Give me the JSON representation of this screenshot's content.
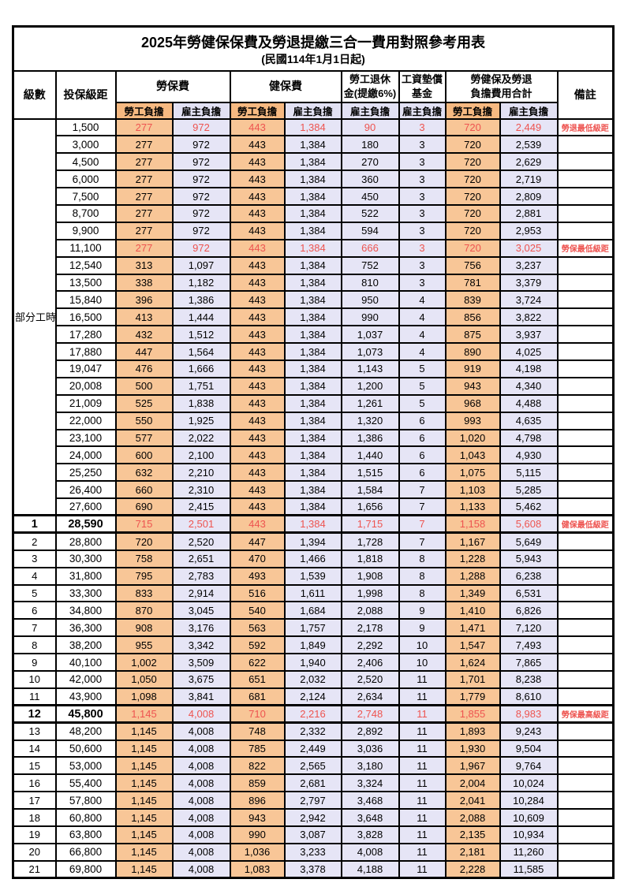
{
  "title": "2025年勞健保保費及勞退提繳三合一費用對照參考用表",
  "subtitle": "(民國114年1月1日起)",
  "header": {
    "level": "級數",
    "bracket": "投保級距",
    "labor_ins": "勞保費",
    "health_ins": "健保費",
    "pension_l1": "勞工退休",
    "pension_l2": "金(提繳6%)",
    "fund_l1": "工資墊償",
    "fund_l2": "基金",
    "total_l1": "勞健保及勞退",
    "total_l2": "負擔費用合計",
    "remark": "備註",
    "employee": "勞工負擔",
    "employer": "雇主負擔"
  },
  "group_label": "部分工時",
  "group_rowspan": 23,
  "colors": {
    "employee_bg": "#F8C697",
    "employer_bg": "#E6E5F6",
    "subheader_employee_bg": "#F6B981",
    "highlight_red": "#EE5450",
    "border": "#000000"
  },
  "rows": [
    {
      "level": "",
      "bracket": "1,500",
      "labor_emp": "277",
      "labor_er": "972",
      "health_emp": "443",
      "health_er": "1,384",
      "pension_er": "90",
      "fund_er": "3",
      "total_emp": "720",
      "total_er": "2,449",
      "remark": "勞退最低級距",
      "red": true,
      "emphasis": false
    },
    {
      "level": "",
      "bracket": "3,000",
      "labor_emp": "277",
      "labor_er": "972",
      "health_emp": "443",
      "health_er": "1,384",
      "pension_er": "180",
      "fund_er": "3",
      "total_emp": "720",
      "total_er": "2,539",
      "remark": "",
      "red": false,
      "emphasis": false
    },
    {
      "level": "",
      "bracket": "4,500",
      "labor_emp": "277",
      "labor_er": "972",
      "health_emp": "443",
      "health_er": "1,384",
      "pension_er": "270",
      "fund_er": "3",
      "total_emp": "720",
      "total_er": "2,629",
      "remark": "",
      "red": false,
      "emphasis": false
    },
    {
      "level": "",
      "bracket": "6,000",
      "labor_emp": "277",
      "labor_er": "972",
      "health_emp": "443",
      "health_er": "1,384",
      "pension_er": "360",
      "fund_er": "3",
      "total_emp": "720",
      "total_er": "2,719",
      "remark": "",
      "red": false,
      "emphasis": false
    },
    {
      "level": "",
      "bracket": "7,500",
      "labor_emp": "277",
      "labor_er": "972",
      "health_emp": "443",
      "health_er": "1,384",
      "pension_er": "450",
      "fund_er": "3",
      "total_emp": "720",
      "total_er": "2,809",
      "remark": "",
      "red": false,
      "emphasis": false
    },
    {
      "level": "",
      "bracket": "8,700",
      "labor_emp": "277",
      "labor_er": "972",
      "health_emp": "443",
      "health_er": "1,384",
      "pension_er": "522",
      "fund_er": "3",
      "total_emp": "720",
      "total_er": "2,881",
      "remark": "",
      "red": false,
      "emphasis": false
    },
    {
      "level": "",
      "bracket": "9,900",
      "labor_emp": "277",
      "labor_er": "972",
      "health_emp": "443",
      "health_er": "1,384",
      "pension_er": "594",
      "fund_er": "3",
      "total_emp": "720",
      "total_er": "2,953",
      "remark": "",
      "red": false,
      "emphasis": false
    },
    {
      "level": "",
      "bracket": "11,100",
      "labor_emp": "277",
      "labor_er": "972",
      "health_emp": "443",
      "health_er": "1,384",
      "pension_er": "666",
      "fund_er": "3",
      "total_emp": "720",
      "total_er": "3,025",
      "remark": "勞保最低級距",
      "red": true,
      "emphasis": false
    },
    {
      "level": "",
      "bracket": "12,540",
      "labor_emp": "313",
      "labor_er": "1,097",
      "health_emp": "443",
      "health_er": "1,384",
      "pension_er": "752",
      "fund_er": "3",
      "total_emp": "756",
      "total_er": "3,237",
      "remark": "",
      "red": false,
      "emphasis": false
    },
    {
      "level": "",
      "bracket": "13,500",
      "labor_emp": "338",
      "labor_er": "1,182",
      "health_emp": "443",
      "health_er": "1,384",
      "pension_er": "810",
      "fund_er": "3",
      "total_emp": "781",
      "total_er": "3,379",
      "remark": "",
      "red": false,
      "emphasis": false
    },
    {
      "level": "",
      "bracket": "15,840",
      "labor_emp": "396",
      "labor_er": "1,386",
      "health_emp": "443",
      "health_er": "1,384",
      "pension_er": "950",
      "fund_er": "4",
      "total_emp": "839",
      "total_er": "3,724",
      "remark": "",
      "red": false,
      "emphasis": false
    },
    {
      "level": "",
      "bracket": "16,500",
      "labor_emp": "413",
      "labor_er": "1,444",
      "health_emp": "443",
      "health_er": "1,384",
      "pension_er": "990",
      "fund_er": "4",
      "total_emp": "856",
      "total_er": "3,822",
      "remark": "",
      "red": false,
      "emphasis": false
    },
    {
      "level": "",
      "bracket": "17,280",
      "labor_emp": "432",
      "labor_er": "1,512",
      "health_emp": "443",
      "health_er": "1,384",
      "pension_er": "1,037",
      "fund_er": "4",
      "total_emp": "875",
      "total_er": "3,937",
      "remark": "",
      "red": false,
      "emphasis": false
    },
    {
      "level": "",
      "bracket": "17,880",
      "labor_emp": "447",
      "labor_er": "1,564",
      "health_emp": "443",
      "health_er": "1,384",
      "pension_er": "1,073",
      "fund_er": "4",
      "total_emp": "890",
      "total_er": "4,025",
      "remark": "",
      "red": false,
      "emphasis": false
    },
    {
      "level": "",
      "bracket": "19,047",
      "labor_emp": "476",
      "labor_er": "1,666",
      "health_emp": "443",
      "health_er": "1,384",
      "pension_er": "1,143",
      "fund_er": "5",
      "total_emp": "919",
      "total_er": "4,198",
      "remark": "",
      "red": false,
      "emphasis": false
    },
    {
      "level": "",
      "bracket": "20,008",
      "labor_emp": "500",
      "labor_er": "1,751",
      "health_emp": "443",
      "health_er": "1,384",
      "pension_er": "1,200",
      "fund_er": "5",
      "total_emp": "943",
      "total_er": "4,340",
      "remark": "",
      "red": false,
      "emphasis": false
    },
    {
      "level": "",
      "bracket": "21,009",
      "labor_emp": "525",
      "labor_er": "1,838",
      "health_emp": "443",
      "health_er": "1,384",
      "pension_er": "1,261",
      "fund_er": "5",
      "total_emp": "968",
      "total_er": "4,488",
      "remark": "",
      "red": false,
      "emphasis": false
    },
    {
      "level": "",
      "bracket": "22,000",
      "labor_emp": "550",
      "labor_er": "1,925",
      "health_emp": "443",
      "health_er": "1,384",
      "pension_er": "1,320",
      "fund_er": "6",
      "total_emp": "993",
      "total_er": "4,635",
      "remark": "",
      "red": false,
      "emphasis": false
    },
    {
      "level": "",
      "bracket": "23,100",
      "labor_emp": "577",
      "labor_er": "2,022",
      "health_emp": "443",
      "health_er": "1,384",
      "pension_er": "1,386",
      "fund_er": "6",
      "total_emp": "1,020",
      "total_er": "4,798",
      "remark": "",
      "red": false,
      "emphasis": false
    },
    {
      "level": "",
      "bracket": "24,000",
      "labor_emp": "600",
      "labor_er": "2,100",
      "health_emp": "443",
      "health_er": "1,384",
      "pension_er": "1,440",
      "fund_er": "6",
      "total_emp": "1,043",
      "total_er": "4,930",
      "remark": "",
      "red": false,
      "emphasis": false
    },
    {
      "level": "",
      "bracket": "25,250",
      "labor_emp": "632",
      "labor_er": "2,210",
      "health_emp": "443",
      "health_er": "1,384",
      "pension_er": "1,515",
      "fund_er": "6",
      "total_emp": "1,075",
      "total_er": "5,115",
      "remark": "",
      "red": false,
      "emphasis": false
    },
    {
      "level": "",
      "bracket": "26,400",
      "labor_emp": "660",
      "labor_er": "2,310",
      "health_emp": "443",
      "health_er": "1,384",
      "pension_er": "1,584",
      "fund_er": "7",
      "total_emp": "1,103",
      "total_er": "5,285",
      "remark": "",
      "red": false,
      "emphasis": false
    },
    {
      "level": "",
      "bracket": "27,600",
      "labor_emp": "690",
      "labor_er": "2,415",
      "health_emp": "443",
      "health_er": "1,384",
      "pension_er": "1,656",
      "fund_er": "7",
      "total_emp": "1,133",
      "total_er": "5,462",
      "remark": "",
      "red": false,
      "emphasis": false
    },
    {
      "level": "1",
      "bracket": "28,590",
      "labor_emp": "715",
      "labor_er": "2,501",
      "health_emp": "443",
      "health_er": "1,384",
      "pension_er": "1,715",
      "fund_er": "7",
      "total_emp": "1,158",
      "total_er": "5,608",
      "remark": "健保最低級距",
      "red": true,
      "emphasis": true
    },
    {
      "level": "2",
      "bracket": "28,800",
      "labor_emp": "720",
      "labor_er": "2,520",
      "health_emp": "447",
      "health_er": "1,394",
      "pension_er": "1,728",
      "fund_er": "7",
      "total_emp": "1,167",
      "total_er": "5,649",
      "remark": "",
      "red": false,
      "emphasis": false
    },
    {
      "level": "3",
      "bracket": "30,300",
      "labor_emp": "758",
      "labor_er": "2,651",
      "health_emp": "470",
      "health_er": "1,466",
      "pension_er": "1,818",
      "fund_er": "8",
      "total_emp": "1,228",
      "total_er": "5,943",
      "remark": "",
      "red": false,
      "emphasis": false
    },
    {
      "level": "4",
      "bracket": "31,800",
      "labor_emp": "795",
      "labor_er": "2,783",
      "health_emp": "493",
      "health_er": "1,539",
      "pension_er": "1,908",
      "fund_er": "8",
      "total_emp": "1,288",
      "total_er": "6,238",
      "remark": "",
      "red": false,
      "emphasis": false
    },
    {
      "level": "5",
      "bracket": "33,300",
      "labor_emp": "833",
      "labor_er": "2,914",
      "health_emp": "516",
      "health_er": "1,611",
      "pension_er": "1,998",
      "fund_er": "8",
      "total_emp": "1,349",
      "total_er": "6,531",
      "remark": "",
      "red": false,
      "emphasis": false
    },
    {
      "level": "6",
      "bracket": "34,800",
      "labor_emp": "870",
      "labor_er": "3,045",
      "health_emp": "540",
      "health_er": "1,684",
      "pension_er": "2,088",
      "fund_er": "9",
      "total_emp": "1,410",
      "total_er": "6,826",
      "remark": "",
      "red": false,
      "emphasis": false
    },
    {
      "level": "7",
      "bracket": "36,300",
      "labor_emp": "908",
      "labor_er": "3,176",
      "health_emp": "563",
      "health_er": "1,757",
      "pension_er": "2,178",
      "fund_er": "9",
      "total_emp": "1,471",
      "total_er": "7,120",
      "remark": "",
      "red": false,
      "emphasis": false
    },
    {
      "level": "8",
      "bracket": "38,200",
      "labor_emp": "955",
      "labor_er": "3,342",
      "health_emp": "592",
      "health_er": "1,849",
      "pension_er": "2,292",
      "fund_er": "10",
      "total_emp": "1,547",
      "total_er": "7,493",
      "remark": "",
      "red": false,
      "emphasis": false
    },
    {
      "level": "9",
      "bracket": "40,100",
      "labor_emp": "1,002",
      "labor_er": "3,509",
      "health_emp": "622",
      "health_er": "1,940",
      "pension_er": "2,406",
      "fund_er": "10",
      "total_emp": "1,624",
      "total_er": "7,865",
      "remark": "",
      "red": false,
      "emphasis": false
    },
    {
      "level": "10",
      "bracket": "42,000",
      "labor_emp": "1,050",
      "labor_er": "3,675",
      "health_emp": "651",
      "health_er": "2,032",
      "pension_er": "2,520",
      "fund_er": "11",
      "total_emp": "1,701",
      "total_er": "8,238",
      "remark": "",
      "red": false,
      "emphasis": false
    },
    {
      "level": "11",
      "bracket": "43,900",
      "labor_emp": "1,098",
      "labor_er": "3,841",
      "health_emp": "681",
      "health_er": "2,124",
      "pension_er": "2,634",
      "fund_er": "11",
      "total_emp": "1,779",
      "total_er": "8,610",
      "remark": "",
      "red": false,
      "emphasis": false
    },
    {
      "level": "12",
      "bracket": "45,800",
      "labor_emp": "1,145",
      "labor_er": "4,008",
      "health_emp": "710",
      "health_er": "2,216",
      "pension_er": "2,748",
      "fund_er": "11",
      "total_emp": "1,855",
      "total_er": "8,983",
      "remark": "勞保最高級距",
      "red": true,
      "emphasis": true
    },
    {
      "level": "13",
      "bracket": "48,200",
      "labor_emp": "1,145",
      "labor_er": "4,008",
      "health_emp": "748",
      "health_er": "2,332",
      "pension_er": "2,892",
      "fund_er": "11",
      "total_emp": "1,893",
      "total_er": "9,243",
      "remark": "",
      "red": false,
      "emphasis": false
    },
    {
      "level": "14",
      "bracket": "50,600",
      "labor_emp": "1,145",
      "labor_er": "4,008",
      "health_emp": "785",
      "health_er": "2,449",
      "pension_er": "3,036",
      "fund_er": "11",
      "total_emp": "1,930",
      "total_er": "9,504",
      "remark": "",
      "red": false,
      "emphasis": false
    },
    {
      "level": "15",
      "bracket": "53,000",
      "labor_emp": "1,145",
      "labor_er": "4,008",
      "health_emp": "822",
      "health_er": "2,565",
      "pension_er": "3,180",
      "fund_er": "11",
      "total_emp": "1,967",
      "total_er": "9,764",
      "remark": "",
      "red": false,
      "emphasis": false
    },
    {
      "level": "16",
      "bracket": "55,400",
      "labor_emp": "1,145",
      "labor_er": "4,008",
      "health_emp": "859",
      "health_er": "2,681",
      "pension_er": "3,324",
      "fund_er": "11",
      "total_emp": "2,004",
      "total_er": "10,024",
      "remark": "",
      "red": false,
      "emphasis": false
    },
    {
      "level": "17",
      "bracket": "57,800",
      "labor_emp": "1,145",
      "labor_er": "4,008",
      "health_emp": "896",
      "health_er": "2,797",
      "pension_er": "3,468",
      "fund_er": "11",
      "total_emp": "2,041",
      "total_er": "10,284",
      "remark": "",
      "red": false,
      "emphasis": false
    },
    {
      "level": "18",
      "bracket": "60,800",
      "labor_emp": "1,145",
      "labor_er": "4,008",
      "health_emp": "943",
      "health_er": "2,942",
      "pension_er": "3,648",
      "fund_er": "11",
      "total_emp": "2,088",
      "total_er": "10,609",
      "remark": "",
      "red": false,
      "emphasis": false
    },
    {
      "level": "19",
      "bracket": "63,800",
      "labor_emp": "1,145",
      "labor_er": "4,008",
      "health_emp": "990",
      "health_er": "3,087",
      "pension_er": "3,828",
      "fund_er": "11",
      "total_emp": "2,135",
      "total_er": "10,934",
      "remark": "",
      "red": false,
      "emphasis": false
    },
    {
      "level": "20",
      "bracket": "66,800",
      "labor_emp": "1,145",
      "labor_er": "4,008",
      "health_emp": "1,036",
      "health_er": "3,233",
      "pension_er": "4,008",
      "fund_er": "11",
      "total_emp": "2,181",
      "total_er": "11,260",
      "remark": "",
      "red": false,
      "emphasis": false
    },
    {
      "level": "21",
      "bracket": "69,800",
      "labor_emp": "1,145",
      "labor_er": "4,008",
      "health_emp": "1,083",
      "health_er": "3,378",
      "pension_er": "4,188",
      "fund_er": "11",
      "total_emp": "2,228",
      "total_er": "11,585",
      "remark": "",
      "red": false,
      "emphasis": false
    }
  ]
}
